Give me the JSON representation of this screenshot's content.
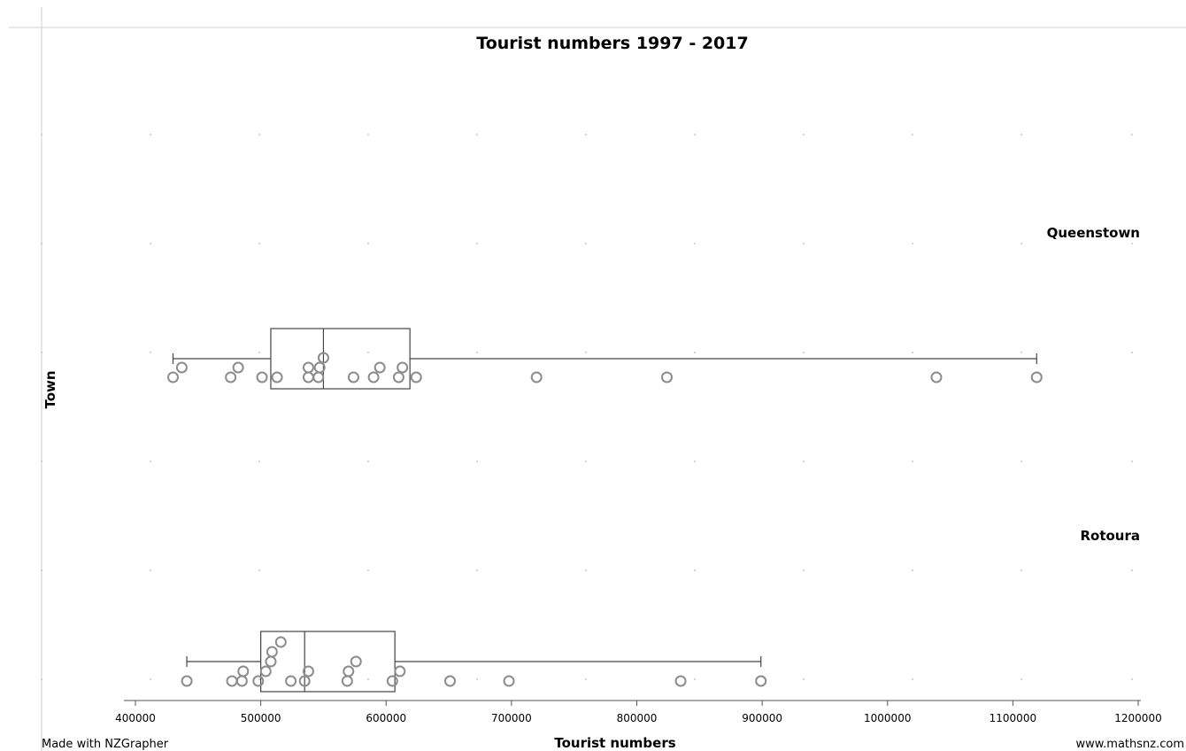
{
  "chart_data": {
    "type": "boxplot",
    "title": "Tourist numbers 1997 - 2017",
    "xlabel": "Tourist numbers",
    "ylabel": "Town",
    "xlim": [
      390000,
      1210000
    ],
    "xticks": [
      400000,
      500000,
      600000,
      700000,
      800000,
      900000,
      1000000,
      1100000,
      1200000
    ],
    "xtick_labels": [
      "400000",
      "500000",
      "600000",
      "700000",
      "800000",
      "900000",
      "1000000",
      "1100000",
      "1200000"
    ],
    "grid": "dotted",
    "groups": [
      {
        "name": "Queenstown",
        "min": 430000,
        "q1": 508000,
        "median": 550000,
        "q3": 619000,
        "max": 1119000,
        "points": [
          430000,
          437000,
          476000,
          482000,
          501000,
          513000,
          538000,
          538000,
          546000,
          547000,
          550000,
          574000,
          590000,
          595000,
          610000,
          613000,
          624000,
          720000,
          824000,
          1039000,
          1119000
        ]
      },
      {
        "name": "Rotoura",
        "min": 441000,
        "q1": 500000,
        "median": 535000,
        "q3": 607000,
        "max": 899000,
        "points": [
          441000,
          477000,
          485000,
          486000,
          498000,
          504000,
          508000,
          509000,
          516000,
          524000,
          535000,
          538000,
          569000,
          570000,
          576000,
          605000,
          611000,
          651000,
          698000,
          835000,
          899000
        ]
      }
    ]
  },
  "footer": {
    "left": "Made with NZGrapher",
    "right": "www.mathsnz.com"
  }
}
